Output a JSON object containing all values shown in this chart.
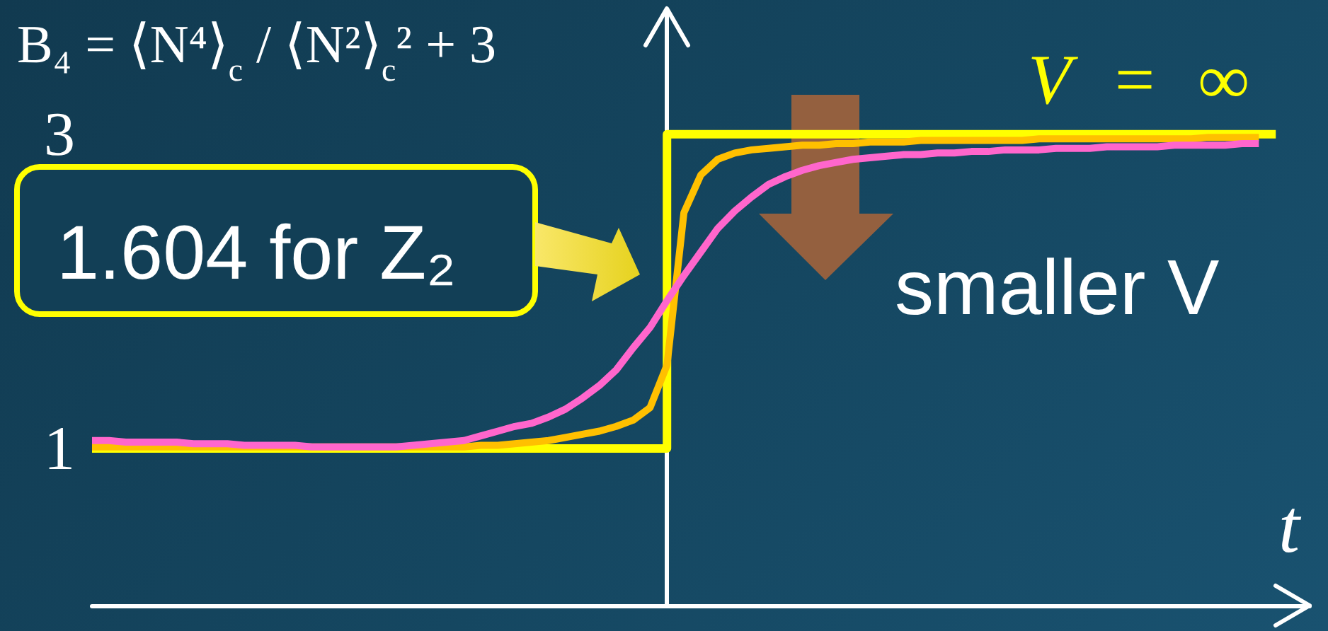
{
  "chart_data": {
    "type": "line",
    "title": "B₄ = ⟨N⁴⟩$_{c}$ / ⟨N²⟩$_{c}$² + 3",
    "xlabel": "t",
    "categories": [
      null,
      null,
      null,
      null,
      null,
      null,
      null,
      null,
      null,
      null,
      null,
      null,
      null,
      null,
      null,
      null,
      null,
      null,
      null,
      null,
      null,
      null,
      null,
      null,
      null,
      null,
      null,
      null,
      null,
      null,
      null,
      null,
      null,
      null,
      null,
      null,
      null,
      null,
      null,
      null,
      null,
      null,
      null,
      null,
      null,
      null,
      null,
      null,
      null,
      null,
      null,
      null,
      null,
      null,
      null,
      null,
      null,
      null,
      null,
      null,
      null,
      null,
      null,
      null,
      null,
      null,
      null,
      null,
      null,
      null,
      null,
      null,
      null
    ],
    "ylim": [
      0,
      3.8
    ],
    "yticks": [
      1,
      3
    ],
    "annotations": [
      "1.604 for Z₂",
      "smaller V"
    ],
    "series": [
      {
        "name": "V = ∞",
        "type": "step",
        "color": "#ffff00",
        "values": [
          1,
          1,
          1,
          1,
          1,
          1,
          1,
          1,
          1,
          1,
          1,
          1,
          1,
          1,
          1,
          1,
          1,
          1,
          1,
          1,
          1,
          1,
          1,
          1,
          1,
          1,
          1,
          1,
          1,
          1,
          1,
          1,
          1,
          1,
          1,
          3,
          3,
          3,
          3,
          3,
          3,
          3,
          3,
          3,
          3,
          3,
          3,
          3,
          3,
          3,
          3,
          3,
          3,
          3,
          3,
          3,
          3,
          3,
          3,
          3,
          3,
          3,
          3,
          3,
          3,
          3,
          3,
          3,
          3,
          3,
          3,
          null,
          null
        ]
      },
      {
        "color": "#ffc000",
        "values": [
          1.01,
          1.01,
          1.01,
          1.01,
          1.01,
          1.01,
          1.01,
          1.01,
          1.01,
          1.01,
          1.01,
          1.01,
          1.01,
          1.01,
          1.01,
          1.01,
          1.01,
          1.01,
          1.01,
          1.01,
          1.01,
          1.01,
          1.01,
          1.02,
          1.02,
          1.03,
          1.04,
          1.05,
          1.07,
          1.09,
          1.11,
          1.14,
          1.18,
          1.26,
          1.53,
          2.5,
          2.74,
          2.84,
          2.88,
          2.9,
          2.91,
          2.92,
          2.93,
          2.93,
          2.94,
          2.94,
          2.95,
          2.95,
          2.95,
          2.96,
          2.96,
          2.96,
          2.96,
          2.96,
          2.96,
          2.96,
          2.97,
          2.97,
          2.97,
          2.97,
          2.97,
          2.97,
          2.97,
          2.97,
          2.97,
          2.97,
          2.98,
          2.98,
          2.98,
          2.98,
          null,
          null,
          null
        ]
      },
      {
        "color": "#ff66cc",
        "values": [
          1.05,
          1.05,
          1.04,
          1.04,
          1.04,
          1.04,
          1.03,
          1.03,
          1.03,
          1.02,
          1.02,
          1.02,
          1.02,
          1.01,
          1.01,
          1.01,
          1.01,
          1.01,
          1.01,
          1.02,
          1.03,
          1.04,
          1.05,
          1.08,
          1.11,
          1.14,
          1.16,
          1.2,
          1.25,
          1.32,
          1.4,
          1.5,
          1.64,
          1.77,
          1.94,
          2.1,
          2.25,
          2.4,
          2.51,
          2.6,
          2.68,
          2.73,
          2.77,
          2.8,
          2.82,
          2.84,
          2.85,
          2.86,
          2.87,
          2.87,
          2.88,
          2.88,
          2.89,
          2.89,
          2.9,
          2.9,
          2.9,
          2.91,
          2.91,
          2.91,
          2.92,
          2.92,
          2.92,
          2.92,
          2.93,
          2.93,
          2.93,
          2.93,
          2.94,
          2.94,
          null,
          null,
          null
        ]
      }
    ]
  }
}
